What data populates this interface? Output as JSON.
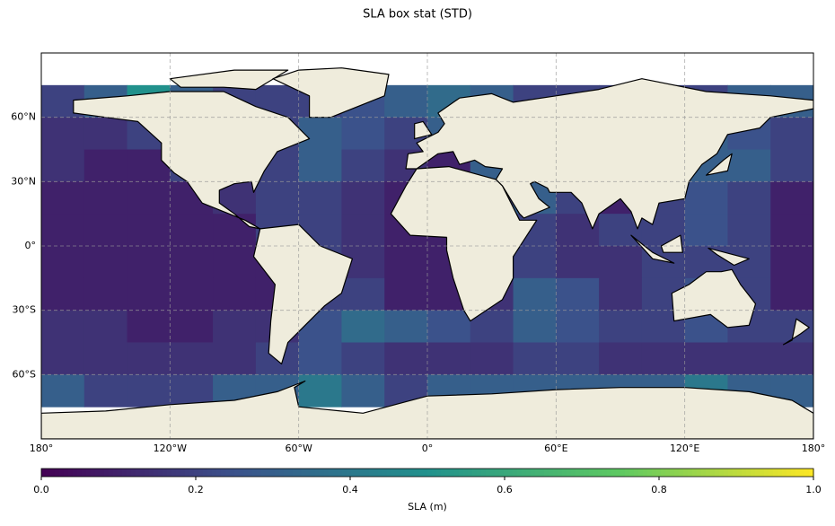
{
  "chart_data": {
    "type": "heatmap",
    "title": "SLA box stat (STD)",
    "x": [
      -170,
      -150,
      -130,
      -110,
      -90,
      -70,
      -50,
      -30,
      -10,
      10,
      30,
      50,
      70,
      90,
      110,
      130,
      150,
      170
    ],
    "y": [
      67.5,
      52.5,
      37.5,
      22.5,
      7.5,
      -7.5,
      -22.5,
      -37.5,
      -52.5,
      -67.5
    ],
    "values": [
      [
        0.2,
        0.3,
        0.5,
        0.3,
        0.2,
        0.2,
        0.2,
        0.25,
        0.3,
        0.35,
        0.3,
        0.2,
        0.2,
        0.2,
        0.2,
        0.2,
        0.3,
        0.3
      ],
      [
        0.15,
        0.15,
        0.2,
        0.3,
        0.2,
        0.2,
        0.3,
        0.25,
        0.2,
        0.3,
        0.4,
        0.3,
        0.2,
        0.2,
        0.2,
        0.3,
        0.25,
        0.2
      ],
      [
        0.15,
        0.1,
        0.1,
        0.2,
        0.2,
        0.2,
        0.3,
        0.2,
        0.15,
        0.1,
        0.3,
        0.3,
        0.2,
        0.2,
        0.2,
        0.3,
        0.3,
        0.2
      ],
      [
        0.1,
        0.1,
        0.1,
        0.1,
        0.15,
        0.2,
        0.2,
        0.15,
        0.1,
        0.1,
        0.2,
        0.3,
        0.2,
        0.1,
        0.2,
        0.25,
        0.2,
        0.1
      ],
      [
        0.1,
        0.1,
        0.1,
        0.1,
        0.1,
        0.2,
        0.2,
        0.15,
        0.1,
        0.1,
        0.2,
        0.2,
        0.15,
        0.2,
        0.2,
        0.25,
        0.2,
        0.1
      ],
      [
        0.1,
        0.1,
        0.1,
        0.1,
        0.1,
        0.1,
        0.2,
        0.15,
        0.1,
        0.1,
        0.2,
        0.2,
        0.15,
        0.15,
        0.2,
        0.2,
        0.2,
        0.1
      ],
      [
        0.1,
        0.1,
        0.1,
        0.1,
        0.1,
        0.1,
        0.2,
        0.2,
        0.1,
        0.1,
        0.15,
        0.3,
        0.25,
        0.15,
        0.2,
        0.25,
        0.2,
        0.1
      ],
      [
        0.15,
        0.15,
        0.1,
        0.1,
        0.15,
        0.15,
        0.25,
        0.35,
        0.3,
        0.25,
        0.2,
        0.3,
        0.25,
        0.2,
        0.2,
        0.25,
        0.2,
        0.2
      ],
      [
        0.15,
        0.15,
        0.15,
        0.15,
        0.15,
        0.2,
        0.25,
        0.2,
        0.15,
        0.15,
        0.15,
        0.2,
        0.2,
        0.15,
        0.15,
        0.15,
        0.15,
        0.15
      ],
      [
        0.3,
        0.2,
        0.2,
        0.2,
        0.3,
        0.3,
        0.4,
        0.3,
        0.2,
        0.3,
        0.3,
        0.3,
        0.3,
        0.3,
        0.3,
        0.4,
        0.3,
        0.3
      ]
    ],
    "xlim": [
      -180,
      180
    ],
    "ylim": [
      -90,
      90
    ],
    "xticks": [
      {
        "value": -180,
        "label": "180°"
      },
      {
        "value": -120,
        "label": "120°W"
      },
      {
        "value": -60,
        "label": "60°W"
      },
      {
        "value": 0,
        "label": "0°"
      },
      {
        "value": 60,
        "label": "60°E"
      },
      {
        "value": 120,
        "label": "120°E"
      },
      {
        "value": 180,
        "label": "180°"
      }
    ],
    "yticks": [
      {
        "value": 60,
        "label": "60°N"
      },
      {
        "value": 30,
        "label": "30°N"
      },
      {
        "value": 0,
        "label": "0°"
      },
      {
        "value": -30,
        "label": "30°S"
      },
      {
        "value": -60,
        "label": "60°S"
      }
    ],
    "grid": true,
    "colormap": [
      "#440154",
      "#3b528b",
      "#21918c",
      "#5ec962",
      "#fde725"
    ],
    "colorbar": {
      "label": "SLA (m)",
      "lim": [
        0,
        1
      ],
      "ticks": [
        {
          "value": 0,
          "label": "0.0"
        },
        {
          "value": 0.2,
          "label": "0.2"
        },
        {
          "value": 0.4,
          "label": "0.4"
        },
        {
          "value": 0.6,
          "label": "0.6"
        },
        {
          "value": 0.8,
          "label": "0.8"
        },
        {
          "value": 1,
          "label": "1.0"
        }
      ]
    }
  }
}
